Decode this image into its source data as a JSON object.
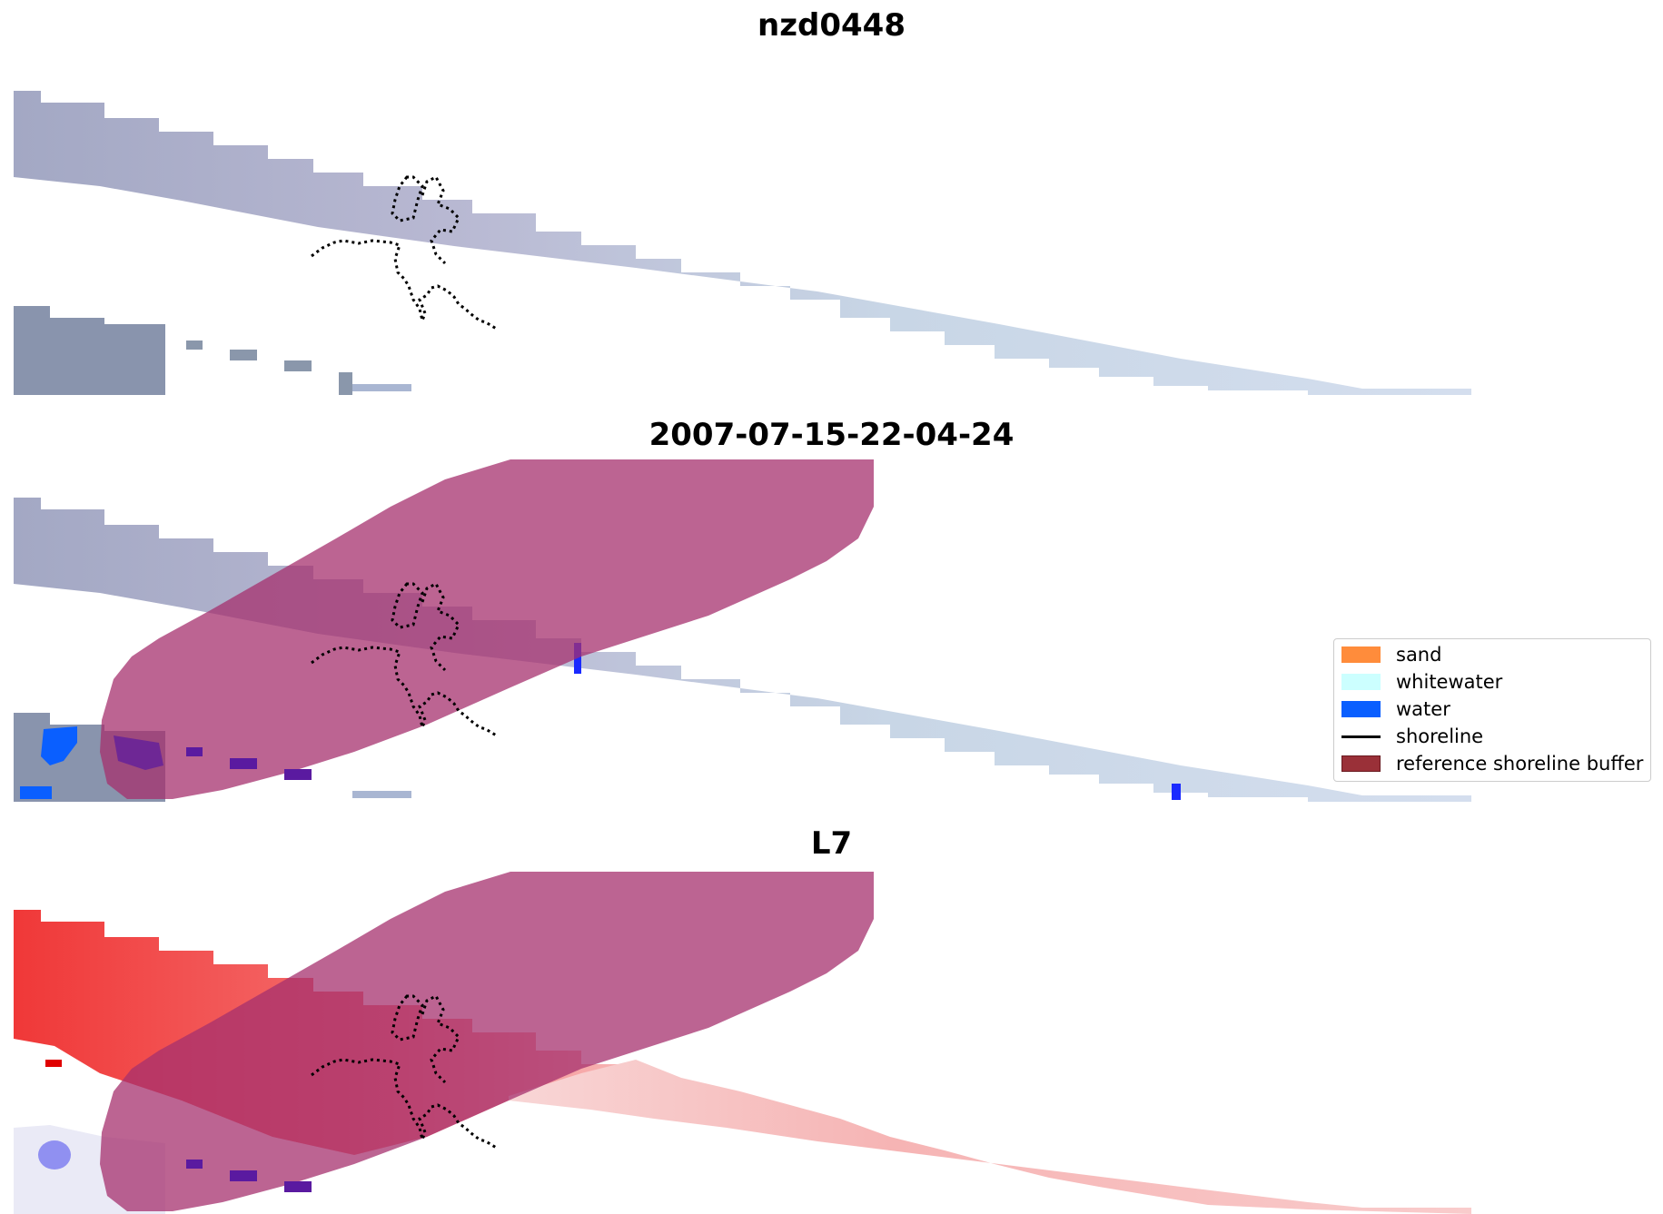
{
  "panels": [
    {
      "title": "nzd0448",
      "layer": "rgb"
    },
    {
      "title": "2007-07-15-22-04-24",
      "layer": "classified"
    },
    {
      "title": "L7",
      "layer": "index"
    }
  ],
  "legend": {
    "items": [
      {
        "label": "sand",
        "color": "#ff8c3b",
        "kind": "patch"
      },
      {
        "label": "whitewater",
        "color": "#ccffff",
        "kind": "patch"
      },
      {
        "label": "water",
        "color": "#0a5fff",
        "kind": "patch"
      },
      {
        "label": "shoreline",
        "color": "#000000",
        "kind": "line"
      },
      {
        "label": "reference shoreline buffer",
        "color": "#9a3038",
        "kind": "patch"
      }
    ]
  },
  "colors": {
    "rgb_a": "#aeb4cc",
    "rgb_b": "#c6d2e2",
    "buffer_overlay": "#b25088",
    "index_red": "#f23a3a",
    "index_pink": "#f6b4b4",
    "index_blue": "#6a6af0",
    "water": "#0a5fff"
  }
}
